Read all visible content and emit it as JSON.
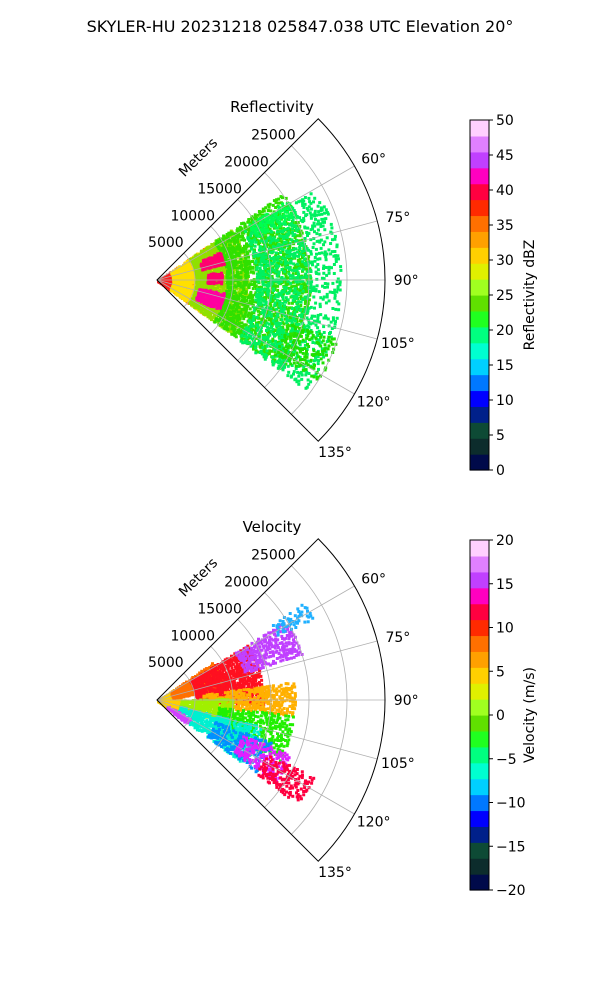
{
  "figure_title": "SKYLER-HU  20231218  025847.038 UTC Elevation 20°",
  "chart_data": [
    {
      "type": "polar-sector",
      "title": "Reflectivity",
      "radial_axis_label": "Meters",
      "radial_ticks": [
        5000,
        10000,
        15000,
        20000,
        25000
      ],
      "angle_ticks": [
        "60°",
        "75°",
        "90°",
        "105°",
        "120°",
        "135°"
      ],
      "angle_range_deg": [
        45,
        135
      ],
      "r_range_m": [
        0,
        30000
      ],
      "grid": true,
      "colorbar": {
        "label": "Reflectivity dBZ",
        "min": 0,
        "max": 50,
        "ticks": [
          "0",
          "5",
          "10",
          "15",
          "20",
          "25",
          "30",
          "35",
          "40",
          "45",
          "50"
        ],
        "colors": [
          "#000a4a",
          "#0c2c2c",
          "#0d4a35",
          "#00208a",
          "#0000ff",
          "#0078ff",
          "#00d0ff",
          "#00ffd0",
          "#00ff80",
          "#20ff20",
          "#60e000",
          "#a0ff20",
          "#e0f000",
          "#ffd000",
          "#ffa000",
          "#ff7000",
          "#ff2a00",
          "#ff0040",
          "#ff00c0",
          "#c040ff",
          "#e080ff",
          "#ffd0ff"
        ]
      },
      "regions": [
        {
          "a0": 55,
          "a1": 126,
          "r0": 0,
          "r1": 2000,
          "color": "#ff2020",
          "density": 1.0
        },
        {
          "a0": 55,
          "a1": 126,
          "r0": 2000,
          "r1": 8000,
          "color": "#ff8c00",
          "density": 0.7
        },
        {
          "a0": 55,
          "a1": 126,
          "r0": 2000,
          "r1": 8000,
          "color": "#ffe000",
          "density": 0.6
        },
        {
          "a0": 55,
          "a1": 126,
          "r0": 5000,
          "r1": 12000,
          "color": "#90e000",
          "density": 0.65
        },
        {
          "a0": 55,
          "a1": 126,
          "r0": 9000,
          "r1": 20000,
          "color": "#30e000",
          "density": 0.55
        },
        {
          "a0": 60,
          "a1": 126,
          "r0": 13000,
          "r1": 24000,
          "color": "#00f060",
          "density": 0.4
        },
        {
          "a0": 65,
          "a1": 75,
          "r0": 6000,
          "r1": 9000,
          "color": "#ff0070",
          "density": 0.85
        },
        {
          "a0": 82,
          "a1": 92,
          "r0": 6500,
          "r1": 8500,
          "color": "#ff0070",
          "density": 0.7
        },
        {
          "a0": 100,
          "a1": 116,
          "r0": 5500,
          "r1": 9000,
          "color": "#ff00a0",
          "density": 0.8
        },
        {
          "a0": 108,
          "a1": 122,
          "r0": 18000,
          "r1": 25000,
          "color": "#20e000",
          "density": 0.45
        },
        {
          "a0": 58,
          "a1": 66,
          "r0": 14000,
          "r1": 20000,
          "color": "#00ff50",
          "density": 0.5
        }
      ]
    },
    {
      "type": "polar-sector",
      "title": "Velocity",
      "radial_axis_label": "Meters",
      "radial_ticks": [
        5000,
        10000,
        15000,
        20000,
        25000
      ],
      "angle_ticks": [
        "60°",
        "75°",
        "90°",
        "105°",
        "120°",
        "135°"
      ],
      "angle_range_deg": [
        45,
        135
      ],
      "r_range_m": [
        0,
        30000
      ],
      "grid": true,
      "colorbar": {
        "label": "Velocity (m/s)",
        "min": -20,
        "max": 20,
        "ticks": [
          "−20",
          "−15",
          "−10",
          "−5",
          "0",
          "5",
          "10",
          "15",
          "20"
        ],
        "colors": [
          "#000a4a",
          "#0c2c2c",
          "#0d4a35",
          "#00208a",
          "#0000ff",
          "#0078ff",
          "#00d0ff",
          "#00ffd0",
          "#00ff80",
          "#20ff20",
          "#60e000",
          "#a0ff20",
          "#e0f000",
          "#ffd000",
          "#ffa000",
          "#ff7000",
          "#ff2a00",
          "#ff0040",
          "#ff00c0",
          "#c040ff",
          "#e080ff",
          "#ffd0ff"
        ]
      },
      "regions": [
        {
          "a0": 55,
          "a1": 126,
          "r0": 0,
          "r1": 3000,
          "color": "#ffd000",
          "density": 0.9
        },
        {
          "a0": 55,
          "a1": 80,
          "r0": 2000,
          "r1": 9000,
          "color": "#ff7000",
          "density": 0.7
        },
        {
          "a0": 58,
          "a1": 92,
          "r0": 5000,
          "r1": 14000,
          "color": "#ff1020",
          "density": 0.75
        },
        {
          "a0": 58,
          "a1": 72,
          "r0": 12000,
          "r1": 20000,
          "color": "#c040ff",
          "density": 0.65
        },
        {
          "a0": 56,
          "a1": 62,
          "r0": 18000,
          "r1": 23000,
          "color": "#20b0ff",
          "density": 0.5
        },
        {
          "a0": 82,
          "a1": 96,
          "r0": 6000,
          "r1": 18000,
          "color": "#ffb000",
          "density": 0.6
        },
        {
          "a0": 88,
          "a1": 108,
          "r0": 3000,
          "r1": 10000,
          "color": "#a0f000",
          "density": 0.6
        },
        {
          "a0": 96,
          "a1": 116,
          "r0": 8000,
          "r1": 18000,
          "color": "#20f000",
          "density": 0.55
        },
        {
          "a0": 104,
          "a1": 126,
          "r0": 3000,
          "r1": 14000,
          "color": "#00f0d0",
          "density": 0.55
        },
        {
          "a0": 110,
          "a1": 126,
          "r0": 8000,
          "r1": 16000,
          "color": "#0090ff",
          "density": 0.4
        },
        {
          "a0": 112,
          "a1": 124,
          "r0": 12000,
          "r1": 19000,
          "color": "#e020ff",
          "density": 0.5
        },
        {
          "a0": 116,
          "a1": 126,
          "r0": 16000,
          "r1": 23000,
          "color": "#ff0040",
          "density": 0.55
        },
        {
          "a0": 118,
          "a1": 128,
          "r0": 1500,
          "r1": 5000,
          "color": "#d040ff",
          "density": 0.6
        }
      ]
    }
  ]
}
